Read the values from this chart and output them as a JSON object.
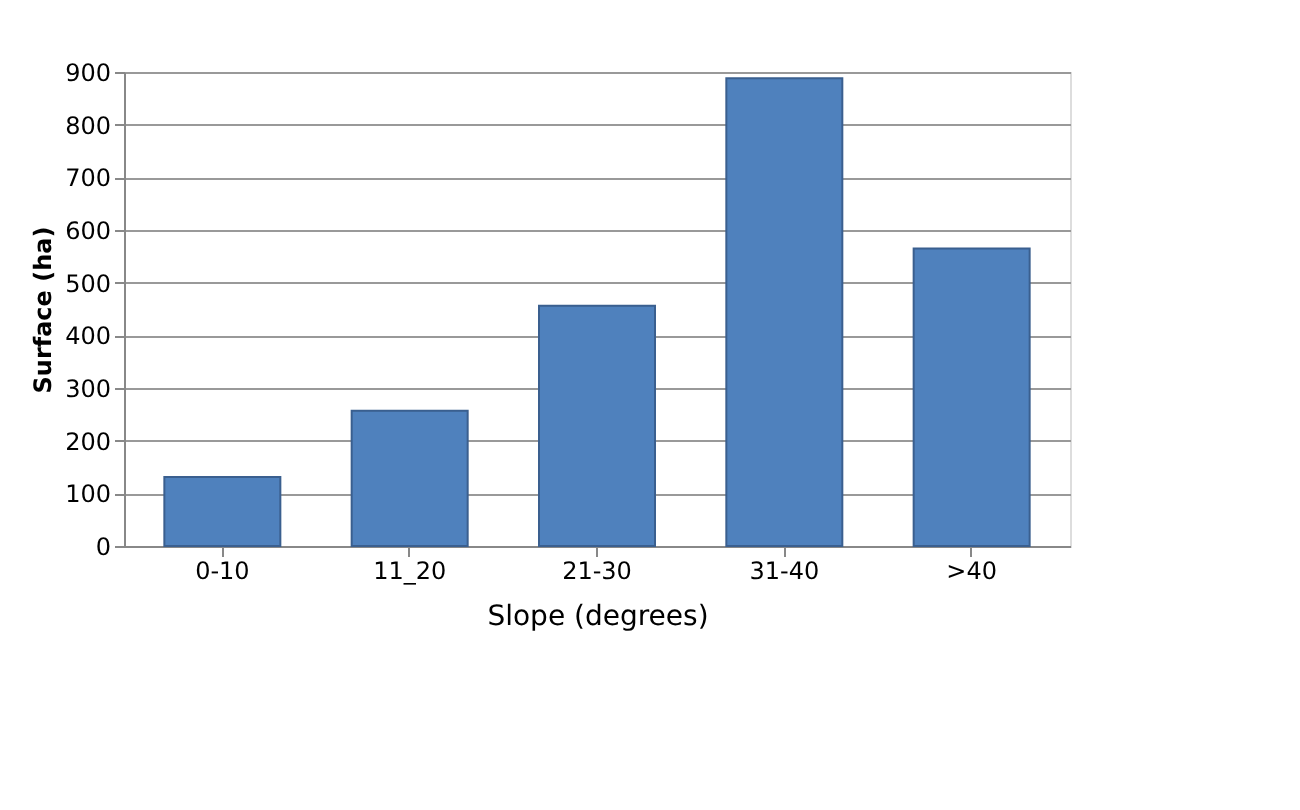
{
  "chart_data": {
    "type": "bar",
    "xlabel": "Slope (degrees)",
    "ylabel": "Surface (ha)",
    "categories": [
      "0-10",
      "11_20",
      "21-30",
      "31-40",
      ">40"
    ],
    "values": [
      131,
      257,
      456,
      888,
      565
    ],
    "color": "#4f81bd",
    "ylim": [
      0,
      900
    ],
    "yticks": [
      0,
      100,
      200,
      300,
      400,
      500,
      600,
      700,
      800,
      900
    ],
    "grid": "y"
  }
}
